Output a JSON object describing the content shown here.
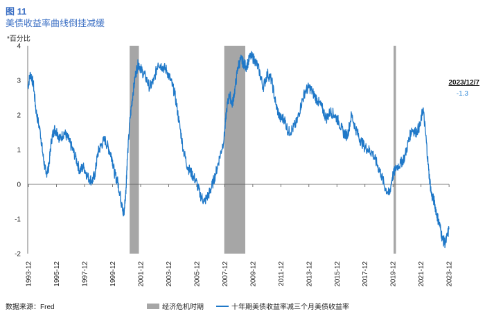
{
  "figure": {
    "number": "图 11",
    "title": "美债收益率曲线倒挂减缓",
    "unit": "*百分比",
    "source": "数据来源：Fred"
  },
  "callout": {
    "date": "2023/12/7",
    "value": "-1.3"
  },
  "colors": {
    "line": "#1f78c8",
    "recession": "#a6a6a6",
    "axis": "#555555"
  },
  "chart_data": {
    "type": "line",
    "x_range": [
      1993.9,
      2023.95
    ],
    "ylim": [
      -2,
      4
    ],
    "y_ticks": [
      "4",
      "3",
      "2",
      "1",
      "0",
      "-1",
      "-2"
    ],
    "x_ticks": [
      "1993-12",
      "1995-12",
      "1997-12",
      "1999-12",
      "2001-12",
      "2003-12",
      "2005-12",
      "2007-12",
      "2009-12",
      "2011-12",
      "2013-12",
      "2015-12",
      "2017-12",
      "2019-12",
      "2021-12",
      "2023-12"
    ],
    "legend": [
      {
        "label": "经济危机时期",
        "kind": "band"
      },
      {
        "label": "十年期美债收益率减三个月美债收益率",
        "kind": "line"
      }
    ],
    "recessions": [
      [
        2001.17,
        2001.83
      ],
      [
        2007.92,
        2009.42
      ],
      [
        2020.0,
        2020.17
      ]
    ],
    "series": [
      {
        "name": "十年期美债收益率减三个月美债收益率",
        "x": [
          1993.9,
          1994.1,
          1994.3,
          1994.5,
          1994.8,
          1995.0,
          1995.2,
          1995.4,
          1995.6,
          1995.8,
          1996.0,
          1996.2,
          1996.5,
          1996.8,
          1997.0,
          1997.3,
          1997.6,
          1997.9,
          1998.2,
          1998.5,
          1998.7,
          1998.9,
          1999.1,
          1999.4,
          1999.7,
          1999.9,
          2000.1,
          2000.3,
          2000.5,
          2000.6,
          2000.75,
          2000.9,
          2001.0,
          2001.2,
          2001.4,
          2001.6,
          2001.8,
          2002.0,
          2002.3,
          2002.6,
          2002.9,
          2003.2,
          2003.5,
          2003.8,
          2004.1,
          2004.4,
          2004.7,
          2005.0,
          2005.3,
          2005.6,
          2005.9,
          2006.2,
          2006.5,
          2006.8,
          2007.0,
          2007.3,
          2007.6,
          2007.9,
          2008.1,
          2008.3,
          2008.5,
          2008.7,
          2008.9,
          2009.1,
          2009.3,
          2009.5,
          2009.8,
          2010.1,
          2010.4,
          2010.7,
          2011.0,
          2011.3,
          2011.6,
          2011.9,
          2012.2,
          2012.5,
          2012.8,
          2013.1,
          2013.4,
          2013.7,
          2014.0,
          2014.3,
          2014.6,
          2014.9,
          2015.2,
          2015.5,
          2015.8,
          2016.1,
          2016.4,
          2016.7,
          2017.0,
          2017.3,
          2017.6,
          2017.9,
          2018.2,
          2018.5,
          2018.8,
          2019.1,
          2019.4,
          2019.7,
          2019.9,
          2020.2,
          2020.5,
          2020.8,
          2021.1,
          2021.3,
          2021.6,
          2021.9,
          2022.1,
          2022.3,
          2022.5,
          2022.7,
          2022.9,
          2023.1,
          2023.3,
          2023.5,
          2023.7,
          2023.95
        ],
        "values": [
          2.8,
          3.2,
          2.9,
          2.1,
          1.5,
          0.8,
          0.3,
          0.5,
          1.3,
          1.6,
          1.5,
          1.3,
          1.5,
          1.3,
          1.1,
          0.8,
          0.4,
          0.5,
          0.2,
          0.1,
          0.3,
          0.9,
          1.1,
          1.3,
          1.0,
          0.8,
          0.3,
          0.1,
          -0.3,
          -0.6,
          -0.9,
          -0.2,
          0.7,
          1.9,
          2.6,
          3.2,
          3.5,
          3.3,
          3.1,
          2.8,
          3.0,
          3.5,
          3.4,
          3.3,
          3.0,
          2.6,
          1.8,
          1.0,
          0.5,
          0.3,
          0.1,
          -0.3,
          -0.5,
          -0.3,
          -0.1,
          0.3,
          0.8,
          1.3,
          2.2,
          2.6,
          2.3,
          2.8,
          3.4,
          3.6,
          3.5,
          3.4,
          3.7,
          3.6,
          3.3,
          2.8,
          3.2,
          3.0,
          2.3,
          1.9,
          1.9,
          1.5,
          1.6,
          1.8,
          2.3,
          2.7,
          2.8,
          2.6,
          2.4,
          2.2,
          1.9,
          2.1,
          2.0,
          1.8,
          1.5,
          1.4,
          2.0,
          1.6,
          1.3,
          1.1,
          1.0,
          0.9,
          0.6,
          0.3,
          -0.1,
          -0.3,
          0.2,
          0.5,
          0.6,
          0.8,
          1.3,
          1.6,
          1.5,
          1.7,
          2.2,
          1.4,
          0.4,
          -0.3,
          -0.5,
          -0.9,
          -1.2,
          -1.6,
          -1.7,
          -1.3
        ]
      }
    ]
  }
}
